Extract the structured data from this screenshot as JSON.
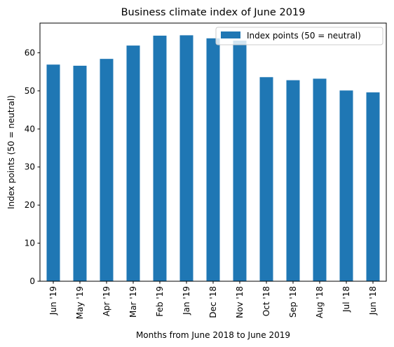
{
  "chart_data": {
    "type": "bar",
    "title": "Business climate index of June 2019",
    "xlabel": "Months from June 2018 to June 2019",
    "ylabel": "Index points (50 = neutral)",
    "categories": [
      "Jun '19",
      "May '19",
      "Apr '19",
      "Mar '19",
      "Feb '19",
      "Jan '19",
      "Dec '18",
      "Nov '18",
      "Oct '18",
      "Sep '18",
      "Aug '18",
      "Jul '18",
      "Jun '18"
    ],
    "series": [
      {
        "name": "Index points (50 = neutral)",
        "color": "#1f77b4",
        "values": [
          56.9,
          56.6,
          58.4,
          61.9,
          64.5,
          64.6,
          63.8,
          63.2,
          53.6,
          52.8,
          53.2,
          50.1,
          49.6
        ]
      }
    ],
    "ylim": [
      0,
      67.8
    ],
    "yticks": [
      0,
      10,
      20,
      30,
      40,
      50,
      60
    ],
    "grid": false,
    "legend_position": "top-right"
  }
}
